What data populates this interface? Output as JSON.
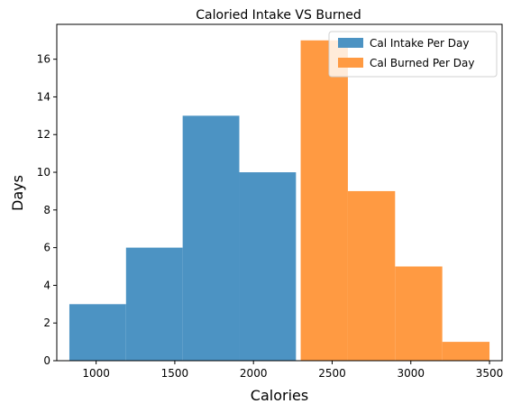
{
  "chart_data": {
    "type": "bar",
    "title": "Caloried Intake VS Burned",
    "xlabel": "Calories",
    "ylabel": "Days",
    "xlim": [
      750,
      3580
    ],
    "ylim": [
      0,
      17.85
    ],
    "xticks": [
      1000,
      1500,
      2000,
      2500,
      3000,
      3500
    ],
    "yticks": [
      0,
      2,
      4,
      6,
      8,
      10,
      12,
      14,
      16
    ],
    "grid": false,
    "legend_position": "top-right",
    "series": [
      {
        "name": "Cal Intake Per Day",
        "color": "#4c93c3",
        "bins": [
          {
            "x0": 830,
            "x1": 1190,
            "count": 3
          },
          {
            "x0": 1190,
            "x1": 1550,
            "count": 6
          },
          {
            "x0": 1550,
            "x1": 1910,
            "count": 13
          },
          {
            "x0": 1910,
            "x1": 2270,
            "count": 10
          }
        ]
      },
      {
        "name": "Cal Burned Per Day",
        "color": "#ff9a42",
        "bins": [
          {
            "x0": 2300,
            "x1": 2600,
            "count": 17
          },
          {
            "x0": 2600,
            "x1": 2900,
            "count": 9
          },
          {
            "x0": 2900,
            "x1": 3200,
            "count": 5
          },
          {
            "x0": 3200,
            "x1": 3500,
            "count": 1
          }
        ]
      }
    ]
  }
}
